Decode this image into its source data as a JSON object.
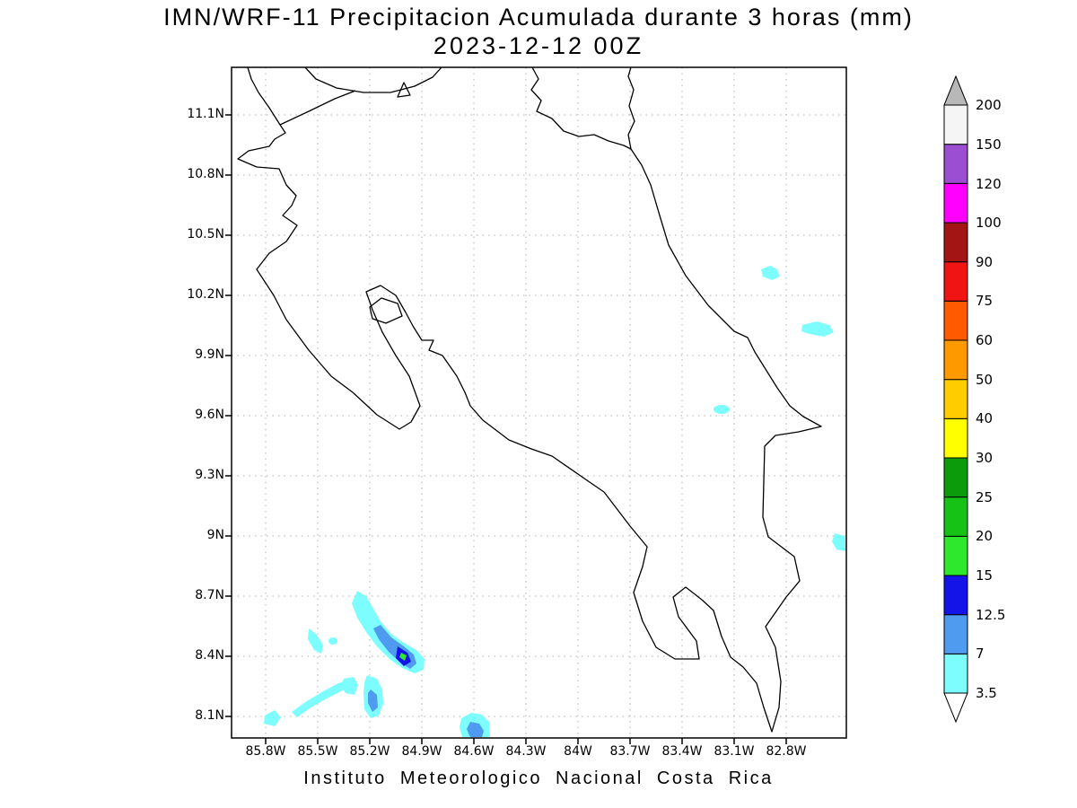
{
  "chart_data": {
    "type": "heatmap",
    "title": "IMN/WRF-11 Precipitacion Acumulada durante 3 horas (mm)",
    "subtitle": "2023-12-12 00Z",
    "footer": "Instituto Meteorologico Nacional Costa Rica",
    "model": "IMN/WRF-11",
    "valid_time": "2023-12-12 00Z",
    "accumulation_hours": 3,
    "units": "mm",
    "region": "Costa Rica",
    "grid": true,
    "legend_position": "right",
    "lat_ticks": [
      "11.1N",
      "10.8N",
      "10.5N",
      "10.2N",
      "9.9N",
      "9.6N",
      "9.3N",
      "9N",
      "8.7N",
      "8.4N",
      "8.1N"
    ],
    "lon_ticks": [
      "85.8W",
      "85.5W",
      "85.2W",
      "84.9W",
      "84.6W",
      "84.3W",
      "84W",
      "83.7W",
      "83.4W",
      "83.1W",
      "82.8W"
    ],
    "levels_mm": [
      3.5,
      7,
      12.5,
      15,
      20,
      25,
      30,
      40,
      50,
      60,
      75,
      90,
      100,
      120,
      150,
      200
    ],
    "precip_features": [
      {
        "location": "Pacific offshore SW of Nicoya Peninsula (~8.5N, 85.1W)",
        "peak_value_range_mm": "15-20"
      },
      {
        "location": "Pacific offshore (~8.2N, 85.2W)",
        "peak_value_range_mm": "7-12.5"
      },
      {
        "location": "Pacific offshore diagonal band (~8.2N, 85.5W)",
        "peak_value_range_mm": "3.5-7"
      },
      {
        "location": "Pacific offshore at south edge (~8.05N, 84.6W)",
        "peak_value_range_mm": "7-12.5"
      },
      {
        "location": "Near Caribbean coast (~9.6N, 83.2W)",
        "peak_value_range_mm": "3.5-7"
      },
      {
        "location": "Caribbean offshore (~10.3N, 82.9W)",
        "peak_value_range_mm": "3.5-7"
      },
      {
        "location": "Caribbean offshore (~10.0N, 82.6W)",
        "peak_value_range_mm": "3.5-7"
      },
      {
        "location": "Caribbean offshore at east edge (~9.0N, 82.5W)",
        "peak_value_range_mm": "3.5-7"
      }
    ]
  },
  "colorbar": {
    "tick_labels_top_to_bottom": [
      "200",
      "150",
      "120",
      "100",
      "90",
      "75",
      "60",
      "50",
      "40",
      "30",
      "25",
      "20",
      "15",
      "12.5",
      "7",
      "3.5"
    ],
    "segment_colors_bottom_to_top": [
      "#7dfdfd",
      "#4f9bef",
      "#1414e8",
      "#2ee82e",
      "#16c216",
      "#0b9b0b",
      "#ffff00",
      "#ffcc00",
      "#ff9900",
      "#ff5a00",
      "#f01414",
      "#a31414",
      "#ff00ff",
      "#9b4fd0",
      "#f5f5f5"
    ],
    "arrow_above_color": "#b8b8b8",
    "arrow_below_color": "#ffffff"
  }
}
